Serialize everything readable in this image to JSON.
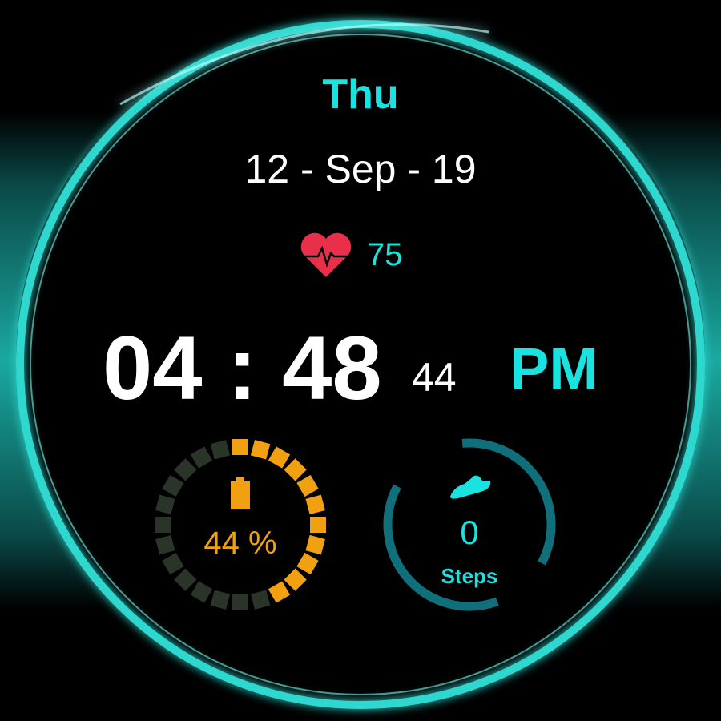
{
  "watch": {
    "day": "Thu",
    "date": "12 - Sep - 19",
    "heart_rate": "75",
    "time": "04 : 48",
    "seconds": "44",
    "ampm": "PM",
    "battery_label": "44 %",
    "battery_percent": 44,
    "steps": "0",
    "steps_label": "Steps"
  },
  "icons": {
    "heart": "heart-pulse-icon",
    "battery": "battery-icon",
    "steps": "shoe-icon"
  },
  "colors": {
    "accent": "#19e3e0",
    "battery": "#f0a010",
    "battery_off": "#2a3428",
    "heart": "#e8304a",
    "steps_ring": "#0f6f7a"
  }
}
